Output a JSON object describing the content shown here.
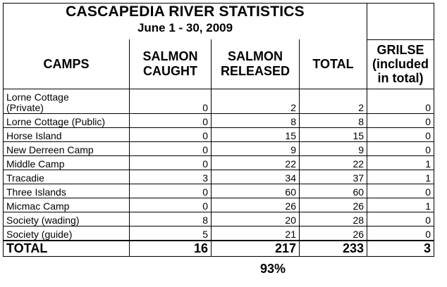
{
  "title": "CASCAPEDIA RIVER STATISTICS",
  "subtitle": "June 1 - 30, 2009",
  "headers": {
    "camps": "CAMPS",
    "caught_1": "SALMON",
    "caught_2": "CAUGHT",
    "released_1": "SALMON",
    "released_2": "RELEASED",
    "total": "TOTAL",
    "grilse_1": "GRILSE",
    "grilse_2": "(included",
    "grilse_3": "in total)"
  },
  "rows": [
    {
      "camp_1": "Lorne Cottage",
      "camp_2": "(Private)",
      "caught": "0",
      "released": "2",
      "total": "2",
      "grilse": "0"
    },
    {
      "camp": "Lorne Cottage (Public)",
      "caught": "0",
      "released": "8",
      "total": "8",
      "grilse": "0"
    },
    {
      "camp": "Horse Island",
      "caught": "0",
      "released": "15",
      "total": "15",
      "grilse": "0"
    },
    {
      "camp": "New Derreen Camp",
      "caught": "0",
      "released": "9",
      "total": "9",
      "grilse": "0"
    },
    {
      "camp": "Middle Camp",
      "caught": "0",
      "released": "22",
      "total": "22",
      "grilse": "1"
    },
    {
      "camp": "Tracadie",
      "caught": "3",
      "released": "34",
      "total": "37",
      "grilse": "1"
    },
    {
      "camp": "Three Islands",
      "caught": "0",
      "released": "60",
      "total": "60",
      "grilse": "0"
    },
    {
      "camp": "Micmac Camp",
      "caught": "0",
      "released": "26",
      "total": "26",
      "grilse": "1"
    },
    {
      "camp": "Society (wading)",
      "caught": "8",
      "released": "20",
      "total": "28",
      "grilse": "0"
    },
    {
      "camp": "Society (guide)",
      "caught": "5",
      "released": "21",
      "total": "26",
      "grilse": "0"
    }
  ],
  "totals": {
    "label": "TOTAL",
    "caught": "16",
    "released": "217",
    "total": "233",
    "grilse": "3"
  },
  "release_percent": "93%"
}
